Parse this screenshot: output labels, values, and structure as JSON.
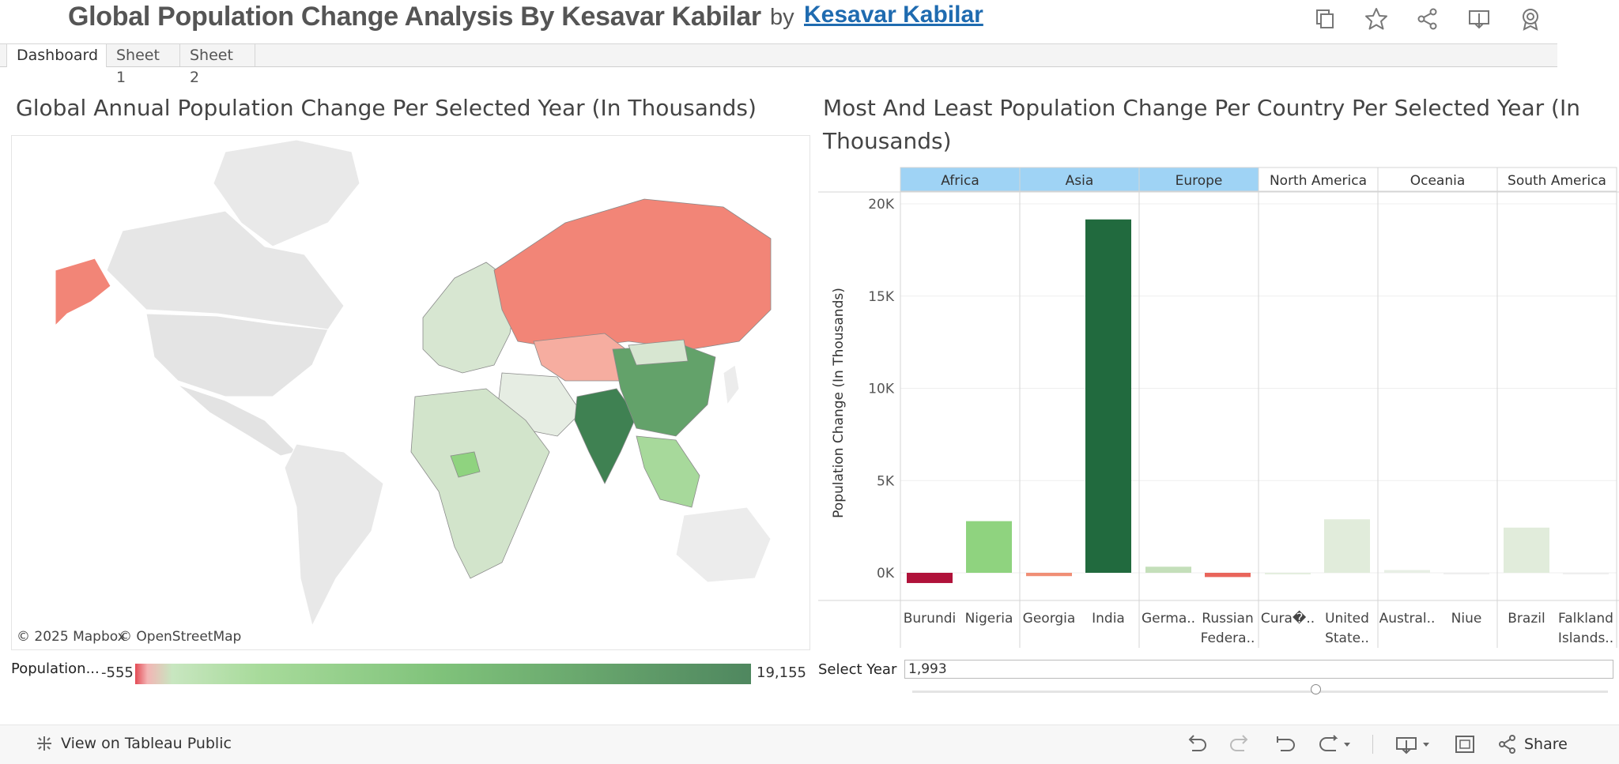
{
  "header": {
    "title": "Global Population Change Analysis By Kesavar Kabilar",
    "by": "by",
    "author": "Kesavar Kabilar"
  },
  "tabs": [
    {
      "label": "Dashboard",
      "active": true
    },
    {
      "label": "Sheet 1",
      "active": false
    },
    {
      "label": "Sheet 2",
      "active": false
    }
  ],
  "map_panel": {
    "title": "Global Annual Population Change Per Selected Year (In Thousands)",
    "credit_mapbox": "© 2025 Mapbox",
    "credit_osm": "© OpenStreetMap",
    "legend_label": "Population...",
    "legend_min": "-555",
    "legend_max": "19,155"
  },
  "bar_panel": {
    "title_line1": "Most And Least Population Change Per Country Per Selected Year (In",
    "title_line2": "Thousands)"
  },
  "chart_data": {
    "type": "bar",
    "ylabel": "Population Change (In Thousands)",
    "ylim": [
      -1000,
      21000
    ],
    "yticks": [
      {
        "value": 0,
        "label": "0K"
      },
      {
        "value": 5000,
        "label": "5K"
      },
      {
        "value": 10000,
        "label": "10K"
      },
      {
        "value": 15000,
        "label": "15K"
      },
      {
        "value": 20000,
        "label": "20K"
      }
    ],
    "grid": true,
    "panels": [
      {
        "continent": "Africa",
        "highlighted": true,
        "bars": [
          {
            "label": "Burundi",
            "value": -555,
            "color": "#b0123a"
          },
          {
            "label": "Nigeria",
            "value": 2800,
            "color": "#8fd37f"
          }
        ]
      },
      {
        "continent": "Asia",
        "highlighted": true,
        "bars": [
          {
            "label": "Georgia",
            "value": -180,
            "color": "#f08f76"
          },
          {
            "label": "India",
            "value": 19155,
            "color": "#216a3e"
          }
        ]
      },
      {
        "continent": "Europe",
        "highlighted": true,
        "bars": [
          {
            "label": "Germa..",
            "value": 330,
            "color": "#c4dfba"
          },
          {
            "label": "Russian Federa..",
            "value": -230,
            "color": "#e9655b"
          }
        ]
      },
      {
        "continent": "North America",
        "highlighted": false,
        "bars": [
          {
            "label": "Cura�..",
            "value": 0,
            "color": "#e4eedf"
          },
          {
            "label": "United State..",
            "value": 2900,
            "color": "#e1ecdb"
          }
        ]
      },
      {
        "continent": "Oceania",
        "highlighted": false,
        "bars": [
          {
            "label": "Austral..",
            "value": 150,
            "color": "#e8efe5"
          },
          {
            "label": "Niue",
            "value": 0,
            "color": "#eeeeee"
          }
        ]
      },
      {
        "continent": "South America",
        "highlighted": false,
        "bars": [
          {
            "label": "Brazil",
            "value": 2450,
            "color": "#e1ecdb"
          },
          {
            "label": "Falkland Islands..",
            "value": 0,
            "color": "#eeeeee"
          }
        ]
      }
    ]
  },
  "year_filter": {
    "label": "Select Year",
    "value": "1,993",
    "fraction": 0.58
  },
  "footer": {
    "view_label": "View on Tableau Public",
    "share_label": "Share"
  },
  "colors": {
    "highlight_header": "#9fd3f5",
    "link": "#1f6bb0",
    "negative": "#e34b55",
    "positive": "#4f875f"
  }
}
